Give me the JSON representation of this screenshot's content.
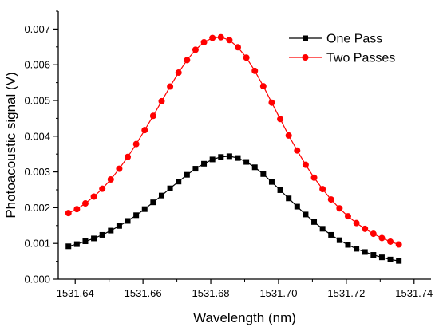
{
  "chart_data": {
    "type": "line",
    "title": "",
    "xlabel": "Wavelength (nm)",
    "ylabel": "Photoacoustic signal (V)",
    "xlim": [
      1531.635,
      1531.745
    ],
    "ylim": [
      0,
      0.0075
    ],
    "x_ticks": [
      1531.64,
      1531.66,
      1531.68,
      1531.7,
      1531.72,
      1531.74
    ],
    "x_tick_labels": [
      "1531.64",
      "1531.66",
      "1531.68",
      "1531.70",
      "1531.72",
      "1531.74"
    ],
    "y_ticks": [
      0,
      0.001,
      0.002,
      0.003,
      0.004,
      0.005,
      0.006,
      0.007
    ],
    "y_tick_labels": [
      "0.000",
      "0.001",
      "0.002",
      "0.003",
      "0.004",
      "0.005",
      "0.006",
      "0.007"
    ],
    "grid": false,
    "legend_position": "top-right",
    "x": [
      1531.638,
      1531.6405,
      1531.643,
      1531.6455,
      1531.648,
      1531.6505,
      1531.653,
      1531.6555,
      1531.658,
      1531.6605,
      1531.663,
      1531.6655,
      1531.668,
      1531.6705,
      1531.673,
      1531.6755,
      1531.678,
      1531.6805,
      1531.683,
      1531.6855,
      1531.688,
      1531.6905,
      1531.693,
      1531.6955,
      1531.698,
      1531.7005,
      1531.703,
      1531.7055,
      1531.708,
      1531.7105,
      1531.713,
      1531.7155,
      1531.718,
      1531.7205,
      1531.723,
      1531.7255,
      1531.728,
      1531.7305,
      1531.733,
      1531.7355
    ],
    "series": [
      {
        "name": "One Pass",
        "marker": "square",
        "color": "#000000",
        "values": [
          0.00092,
          0.00098,
          0.00106,
          0.00114,
          0.00124,
          0.00136,
          0.00149,
          0.00163,
          0.00179,
          0.00196,
          0.00215,
          0.00234,
          0.00254,
          0.00273,
          0.00292,
          0.00309,
          0.00323,
          0.00335,
          0.00342,
          0.00344,
          0.00339,
          0.00328,
          0.00313,
          0.00294,
          0.00272,
          0.00249,
          0.00226,
          0.00203,
          0.00181,
          0.0016,
          0.00141,
          0.00124,
          0.00109,
          0.00096,
          0.00085,
          0.00076,
          0.00068,
          0.00061,
          0.00055,
          0.00051
        ]
      },
      {
        "name": "Two Passes",
        "marker": "circle",
        "color": "#ff0000",
        "values": [
          0.00185,
          0.00196,
          0.00212,
          0.00231,
          0.00253,
          0.00279,
          0.00309,
          0.00342,
          0.00378,
          0.00417,
          0.00457,
          0.00498,
          0.00539,
          0.00578,
          0.00613,
          0.00642,
          0.00663,
          0.00675,
          0.00677,
          0.00669,
          0.00649,
          0.0062,
          0.00583,
          0.0054,
          0.00494,
          0.00448,
          0.00402,
          0.0036,
          0.0032,
          0.00284,
          0.00252,
          0.00223,
          0.00198,
          0.00176,
          0.00157,
          0.00141,
          0.00127,
          0.00115,
          0.00105,
          0.00097
        ]
      }
    ]
  }
}
